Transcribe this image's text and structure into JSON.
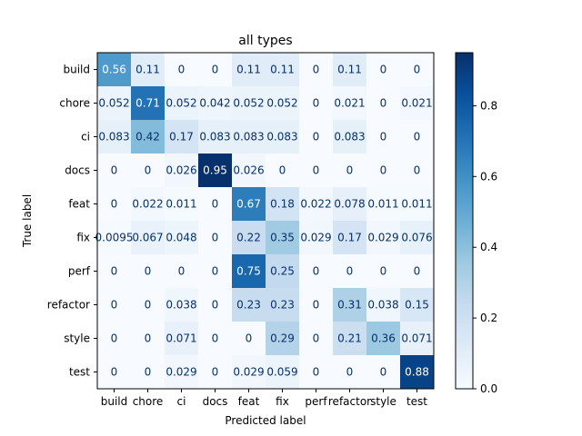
{
  "chart_data": {
    "type": "heatmap",
    "title": "all types",
    "xlabel": "Predicted label",
    "ylabel": "True label",
    "x_categories": [
      "build",
      "chore",
      "ci",
      "docs",
      "feat",
      "fix",
      "perf",
      "refactor",
      "style",
      "test"
    ],
    "y_categories": [
      "build",
      "chore",
      "ci",
      "docs",
      "feat",
      "fix",
      "perf",
      "refactor",
      "style",
      "test"
    ],
    "values": [
      [
        0.56,
        0.11,
        0,
        0,
        0.11,
        0.11,
        0,
        0.11,
        0,
        0
      ],
      [
        0.052,
        0.71,
        0.052,
        0.042,
        0.052,
        0.052,
        0,
        0.021,
        0,
        0.021
      ],
      [
        0.083,
        0.42,
        0.17,
        0.083,
        0.083,
        0.083,
        0,
        0.083,
        0,
        0
      ],
      [
        0,
        0,
        0.026,
        0.95,
        0.026,
        0,
        0,
        0,
        0,
        0
      ],
      [
        0,
        0.022,
        0.011,
        0,
        0.67,
        0.18,
        0.022,
        0.078,
        0.011,
        0.011
      ],
      [
        0.0095,
        0.067,
        0.048,
        0,
        0.22,
        0.35,
        0.029,
        0.17,
        0.029,
        0.076
      ],
      [
        0,
        0,
        0,
        0,
        0.75,
        0.25,
        0,
        0,
        0,
        0
      ],
      [
        0,
        0,
        0.038,
        0,
        0.23,
        0.23,
        0,
        0.31,
        0.038,
        0.15
      ],
      [
        0,
        0,
        0.071,
        0,
        0,
        0.29,
        0,
        0.21,
        0.36,
        0.071
      ],
      [
        0,
        0,
        0.029,
        0,
        0.029,
        0.059,
        0,
        0,
        0,
        0.88
      ]
    ],
    "labels": [
      [
        "0.56",
        "0.11",
        "0",
        "0",
        "0.11",
        "0.11",
        "0",
        "0.11",
        "0",
        "0"
      ],
      [
        "0.052",
        "0.71",
        "0.052",
        "0.042",
        "0.052",
        "0.052",
        "0",
        "0.021",
        "0",
        "0.021"
      ],
      [
        "0.083",
        "0.42",
        "0.17",
        "0.083",
        "0.083",
        "0.083",
        "0",
        "0.083",
        "0",
        "0"
      ],
      [
        "0",
        "0",
        "0.026",
        "0.95",
        "0.026",
        "0",
        "0",
        "0",
        "0",
        "0"
      ],
      [
        "0",
        "0.022",
        "0.011",
        "0",
        "0.67",
        "0.18",
        "0.022",
        "0.078",
        "0.011",
        "0.011"
      ],
      [
        "0.0095",
        "0.067",
        "0.048",
        "0",
        "0.22",
        "0.35",
        "0.029",
        "0.17",
        "0.029",
        "0.076"
      ],
      [
        "0",
        "0",
        "0",
        "0",
        "0.75",
        "0.25",
        "0",
        "0",
        "0",
        "0"
      ],
      [
        "0",
        "0",
        "0.038",
        "0",
        "0.23",
        "0.23",
        "0",
        "0.31",
        "0.038",
        "0.15"
      ],
      [
        "0",
        "0",
        "0.071",
        "0",
        "0",
        "0.29",
        "0",
        "0.21",
        "0.36",
        "0.071"
      ],
      [
        "0",
        "0",
        "0.029",
        "0",
        "0.029",
        "0.059",
        "0",
        "0",
        "0",
        "0.88"
      ]
    ],
    "colormap": "Blues",
    "color_range": [
      0,
      0.95
    ],
    "colorbar_ticks": [
      "0.0",
      "0.2",
      "0.4",
      "0.6",
      "0.8"
    ],
    "text_color_light": "#ffffff",
    "text_color_dark": "#08306b"
  }
}
